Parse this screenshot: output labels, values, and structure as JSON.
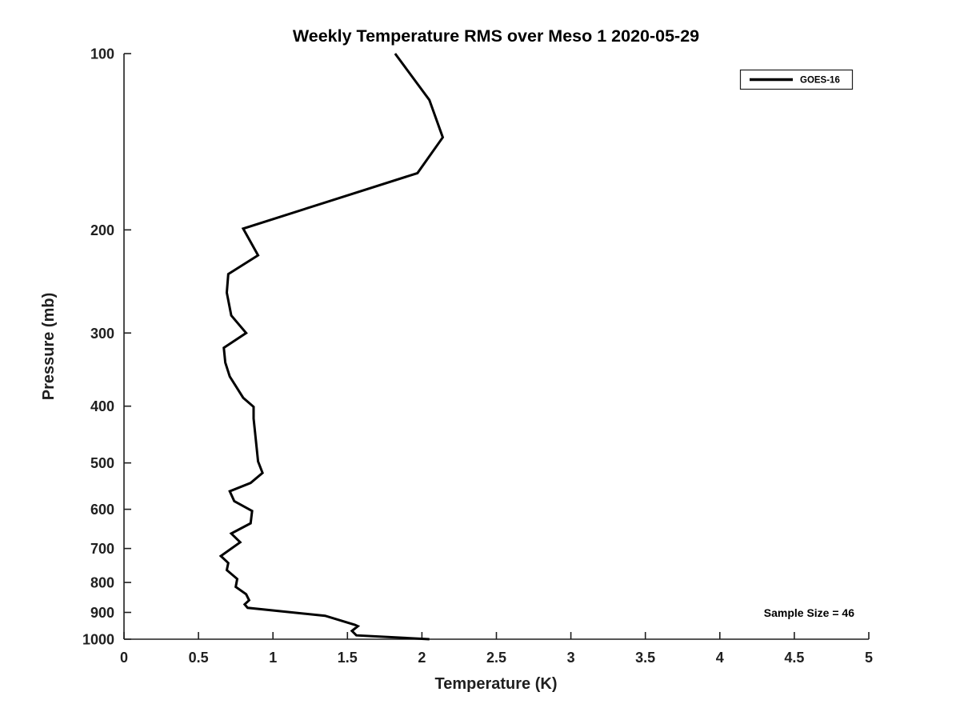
{
  "chart_data": {
    "type": "line",
    "title": "Weekly Temperature RMS over Meso 1 2020-05-29",
    "xlabel": "Temperature (K)",
    "ylabel": "Pressure (mb)",
    "xlim": [
      0,
      5
    ],
    "x_ticks": [
      0,
      0.5,
      1,
      1.5,
      2,
      2.5,
      3,
      3.5,
      4,
      4.5,
      5
    ],
    "x_tick_labels": [
      "0",
      "0.5",
      "1",
      "1.5",
      "2",
      "2.5",
      "3",
      "3.5",
      "4",
      "4.5",
      "5"
    ],
    "y_scale": "log",
    "y_inverted": true,
    "ylim": [
      100,
      1000
    ],
    "y_ticks": [
      100,
      200,
      300,
      400,
      500,
      600,
      700,
      800,
      900,
      1000
    ],
    "y_tick_labels": [
      "100",
      "200",
      "300",
      "400",
      "500",
      "600",
      "700",
      "800",
      "900",
      "1000"
    ],
    "grid": false,
    "legend_position": "top-right",
    "annotations": [
      {
        "text": "Sample Size = 46",
        "position": "bottom-right"
      }
    ],
    "series": [
      {
        "name": "GOES-16",
        "color": "#000000",
        "line_width": 3,
        "x_temperature_k": [
          1.82,
          2.05,
          2.14,
          1.97,
          0.8,
          0.9,
          0.7,
          0.69,
          0.72,
          0.82,
          0.67,
          0.68,
          0.71,
          0.8,
          0.87,
          0.87,
          0.88,
          0.9,
          0.93,
          0.85,
          0.71,
          0.74,
          0.86,
          0.85,
          0.72,
          0.78,
          0.65,
          0.7,
          0.69,
          0.76,
          0.75,
          0.82,
          0.84,
          0.81,
          0.83,
          1.35,
          1.55,
          1.57,
          1.53,
          1.56,
          2.05
        ],
        "y_pressure_mb": [
          100,
          120,
          139,
          160,
          199,
          221,
          238,
          256,
          280,
          300,
          318,
          337,
          356,
          387,
          401,
          420,
          444,
          497,
          520,
          541,
          559,
          581,
          604,
          634,
          660,
          683,
          721,
          741,
          762,
          789,
          814,
          838,
          858,
          872,
          884,
          912,
          945,
          950,
          968,
          985,
          1000
        ]
      }
    ]
  }
}
